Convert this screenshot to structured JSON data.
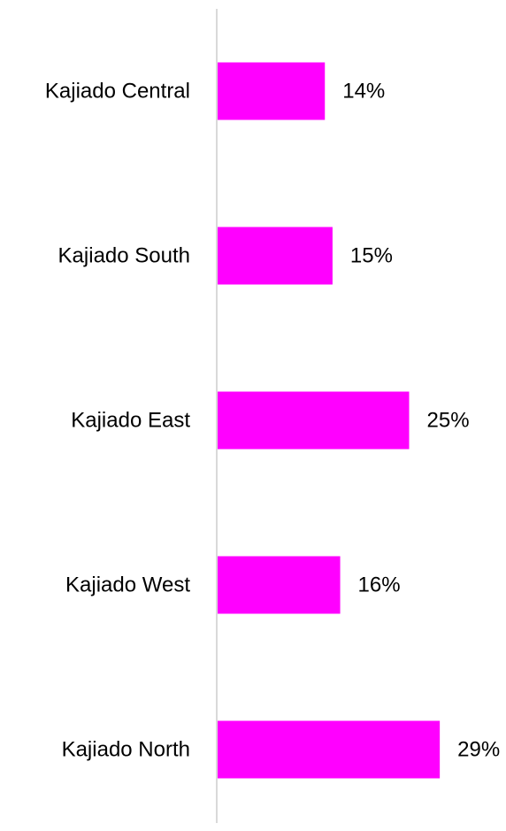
{
  "chart_data": {
    "type": "bar",
    "orientation": "horizontal",
    "categories": [
      "Kajiado Central",
      "Kajiado South",
      "Kajiado East",
      "Kajiado West",
      "Kajiado North"
    ],
    "values": [
      14,
      15,
      25,
      16,
      29
    ],
    "value_labels": [
      "14%",
      "15%",
      "25%",
      "16%",
      "29%"
    ],
    "color": "#ff00ff"
  }
}
